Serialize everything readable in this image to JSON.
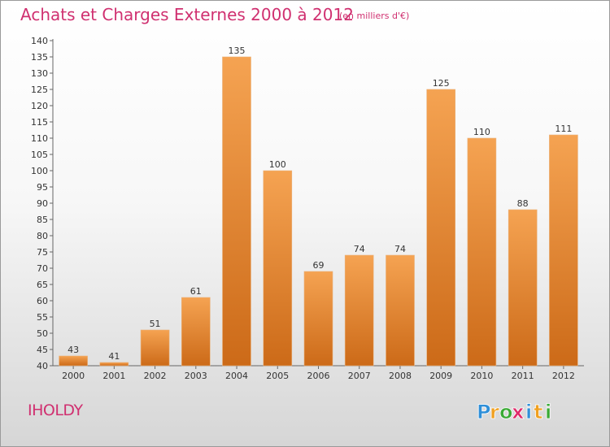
{
  "chart_data": {
    "type": "bar",
    "title": "Achats et Charges Externes 2000 à 2012",
    "subtitle": "(en milliers d'€)",
    "categories": [
      "2000",
      "2001",
      "2002",
      "2003",
      "2004",
      "2005",
      "2006",
      "2007",
      "2008",
      "2009",
      "2010",
      "2011",
      "2012"
    ],
    "values": [
      43,
      41,
      51,
      61,
      135,
      100,
      69,
      74,
      74,
      125,
      110,
      88,
      111
    ],
    "ylim": [
      40,
      140
    ],
    "ytick_step": 5,
    "grid": false,
    "bar_color_top": "#f5a352",
    "bar_color_bottom": "#cc6a18"
  },
  "footer": {
    "commune": "IHOLDY",
    "logo_letters": [
      "P",
      "r",
      "o",
      "x",
      "i",
      "t",
      "i"
    ],
    "logo_colors": [
      "#2f8fd8",
      "#f0a020",
      "#3aaa35",
      "#e02a6a",
      "#2f8fd8",
      "#f0a020",
      "#3aaa35"
    ]
  }
}
